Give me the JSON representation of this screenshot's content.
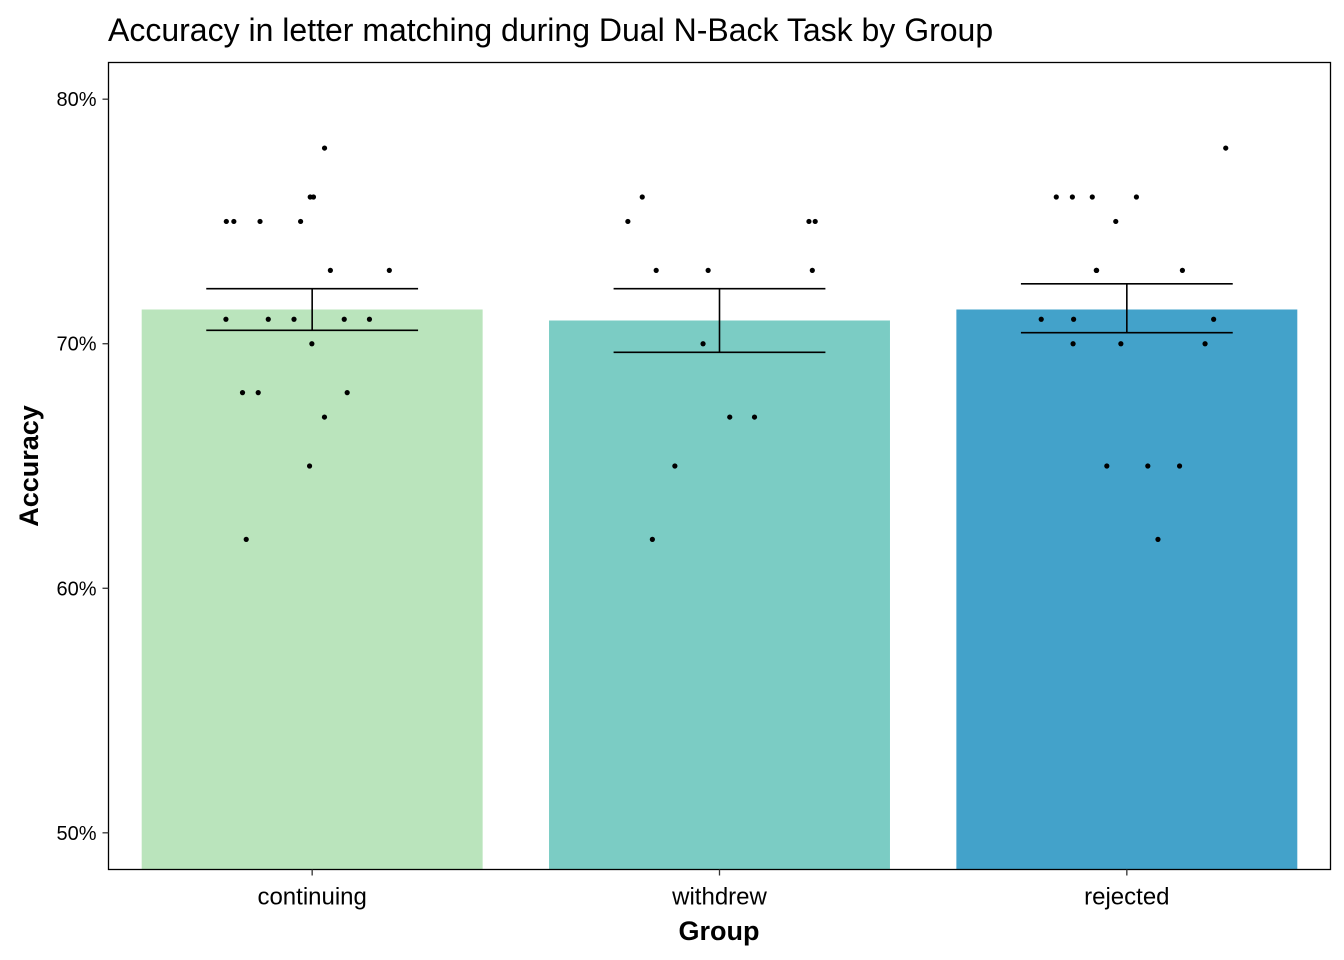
{
  "chart_data": {
    "type": "bar",
    "title": "Accuracy in letter matching during Dual N-Back Task by Group",
    "xlabel": "Group",
    "ylabel": "Accuracy",
    "categories": [
      "continuing",
      "withdrew",
      "rejected"
    ],
    "values": [
      71.4,
      70.95,
      71.4
    ],
    "error_bars": [
      {
        "low": 70.55,
        "high": 72.25
      },
      {
        "low": 69.65,
        "high": 72.25
      },
      {
        "low": 70.45,
        "high": 72.45
      }
    ],
    "colors": [
      "#bae4bc",
      "#7bccc4",
      "#43a2ca"
    ],
    "ylim": [
      48.5,
      81.5
    ],
    "yticks": [
      50,
      60,
      70,
      80
    ],
    "ytick_labels": [
      "50%",
      "60%",
      "70%",
      "80%"
    ],
    "points": [
      [
        76,
        78,
        75,
        75,
        75,
        76,
        75,
        73,
        73,
        71,
        71,
        71,
        71,
        71,
        70,
        68,
        68,
        68,
        67,
        65,
        62
      ],
      [
        75,
        75,
        75,
        76,
        73,
        73,
        73,
        70,
        67,
        67,
        65,
        62
      ],
      [
        78,
        75,
        76,
        76,
        76,
        76,
        73,
        73,
        73,
        71,
        71,
        71,
        70,
        70,
        70,
        65,
        65,
        65,
        62
      ]
    ],
    "grid": false,
    "legend": "none"
  }
}
